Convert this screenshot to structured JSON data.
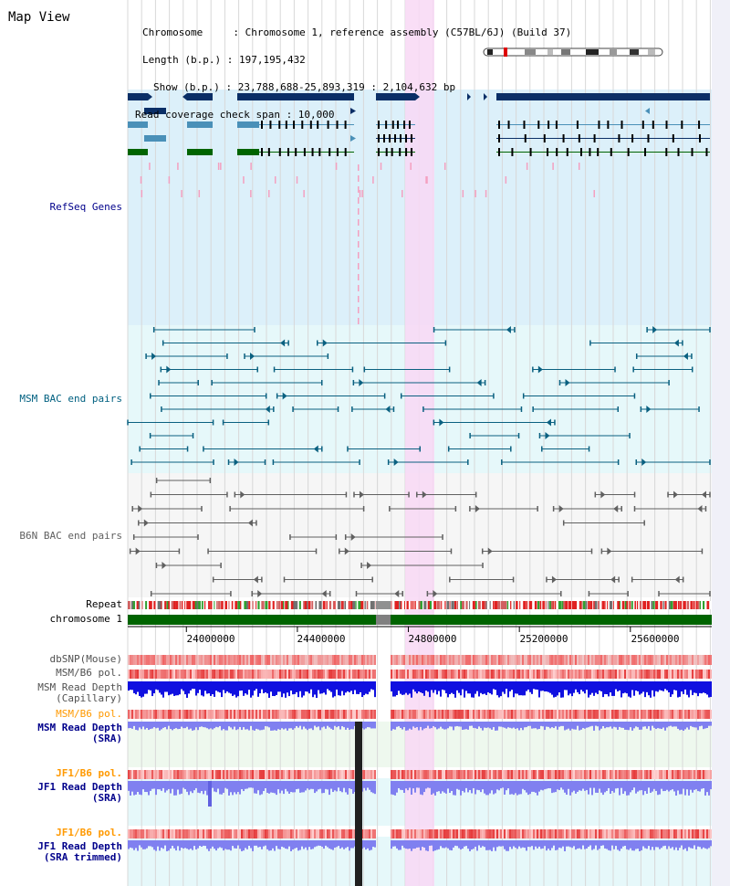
{
  "title": "Map View",
  "header": {
    "chromosome_line": "Chromosome     : Chromosome 1, reference assembly (C57BL/6J) (Build 37)",
    "length_line": "Length (b.p.) : 197,195,432",
    "show_line": "Show (b.p.) : 23,788,688-25,893,319 : 2,104,632 bp",
    "coverage_line": "Read coverage check span : 10,000"
  },
  "tracks": {
    "refseq": {
      "label": "RefSeq Genes",
      "color": "#00008b",
      "bg": "#dcf0fa"
    },
    "msm_bac": {
      "label": "MSM BAC end pairs",
      "color": "#006080",
      "bg": "#e6f8fa"
    },
    "b6n_bac": {
      "label": "B6N BAC end pairs",
      "color": "#606060",
      "bg": "#f6f6f6"
    },
    "repeat": {
      "label": "Repeat"
    },
    "chromosome": {
      "label": "chromosome 1",
      "color": "#006400"
    },
    "dbsnp": {
      "label": "dbSNP(Mouse)",
      "color": "#505050"
    },
    "msm_b6_pol1": {
      "label": "MSM/B6 pol.",
      "color": "#505050"
    },
    "msm_read_depth_cap": {
      "label1": "MSM Read Depth",
      "label2": "(Capillary)",
      "color": "#505050"
    },
    "msm_b6_pol2": {
      "label": "MSM/B6 pol.",
      "color": "#ff9900"
    },
    "msm_read_depth_sra": {
      "label1": "MSM Read Depth",
      "label2": "(SRA)",
      "color": "#00008b"
    },
    "jf1_b6_pol1": {
      "label": "JF1/B6 pol.",
      "color": "#ff9900"
    },
    "jf1_read_depth_sra": {
      "label1": "JF1 Read Depth",
      "label2": "(SRA)",
      "color": "#00008b"
    },
    "jf1_b6_pol2": {
      "label": "JF1/B6 pol.",
      "color": "#ff9900"
    },
    "jf1_read_depth_trim": {
      "label1": "JF1 Read Depth",
      "label2": "(SRA trimmed)",
      "color": "#00008b"
    }
  },
  "axis": {
    "ticks": [
      "24000000",
      "24400000",
      "24800000",
      "25200000",
      "25600000"
    ],
    "tick_values": [
      24000000,
      24400000,
      24800000,
      25200000,
      25600000
    ],
    "range_start": 23788688,
    "range_end": 25893319
  },
  "colors": {
    "highlight": "#f8d8f4",
    "gene_dark": "#0a2e66",
    "gene_light": "#4a90b8",
    "gene_green": "#006400",
    "depth_blue": "#1010e0",
    "depth_light": "#8080f0",
    "snp_red": "#f08080"
  }
}
